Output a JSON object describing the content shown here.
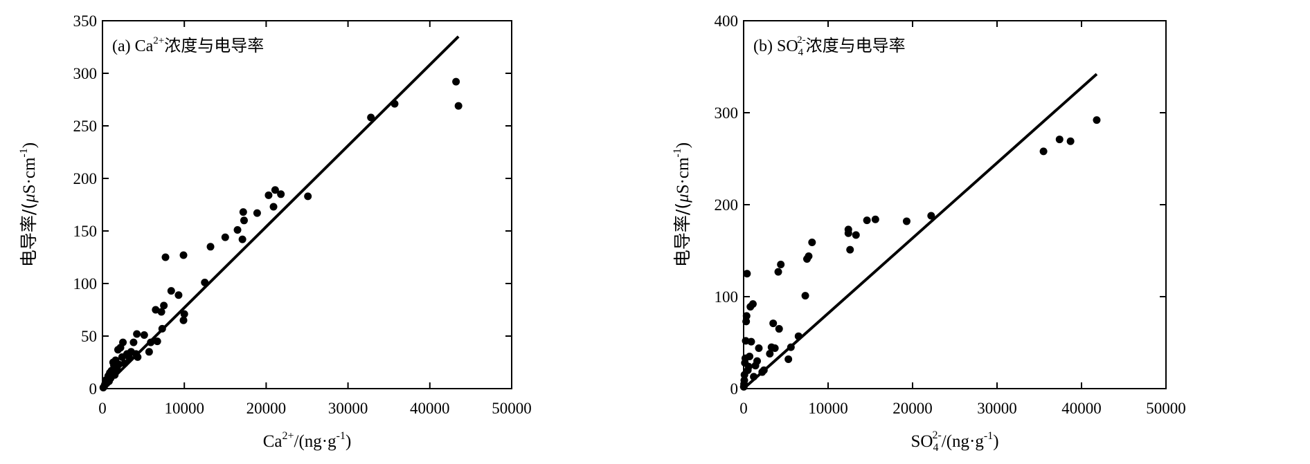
{
  "chart_data": [
    {
      "type": "scatter",
      "panel_title": {
        "prefix": "(a) Ca",
        "sup": "2+",
        "suffix": "浓度与电导率"
      },
      "xlabel": {
        "base": "Ca",
        "sup": "2+",
        "rest": "/(ng·g",
        "rest_sup": "-1",
        "tail": ")"
      },
      "ylabel": {
        "base": "电导率/(",
        "mu": "μ",
        "rest": "S·cm",
        "sup": "-1",
        "tail": ")"
      },
      "xlim": [
        0,
        50000
      ],
      "ylim": [
        0,
        350
      ],
      "x_ticks": [
        "0",
        "10000",
        "20000",
        "30000",
        "40000",
        "50000"
      ],
      "y_ticks": [
        "0",
        "50",
        "100",
        "150",
        "200",
        "250",
        "300",
        "350"
      ],
      "fit_line": {
        "x": [
          0,
          43500
        ],
        "y": [
          0,
          335
        ]
      },
      "points": [
        [
          43200,
          292
        ],
        [
          43500,
          269
        ],
        [
          35700,
          271
        ],
        [
          32800,
          258
        ],
        [
          25100,
          183
        ],
        [
          21800,
          185
        ],
        [
          21100,
          189
        ],
        [
          20900,
          173
        ],
        [
          20300,
          184
        ],
        [
          18900,
          167
        ],
        [
          17300,
          160
        ],
        [
          17200,
          168
        ],
        [
          17100,
          142
        ],
        [
          16500,
          151
        ],
        [
          15000,
          144
        ],
        [
          13200,
          135
        ],
        [
          12500,
          101
        ],
        [
          9900,
          127
        ],
        [
          10000,
          71
        ],
        [
          9900,
          65
        ],
        [
          9300,
          89
        ],
        [
          8400,
          93
        ],
        [
          7700,
          125
        ],
        [
          7500,
          79
        ],
        [
          7200,
          73
        ],
        [
          7300,
          57
        ],
        [
          6700,
          45
        ],
        [
          6500,
          75
        ],
        [
          5900,
          44
        ],
        [
          5700,
          35
        ],
        [
          5100,
          51
        ],
        [
          4300,
          30
        ],
        [
          4200,
          52
        ],
        [
          4100,
          33
        ],
        [
          3800,
          44
        ],
        [
          3500,
          35
        ],
        [
          3300,
          29
        ],
        [
          3000,
          33
        ],
        [
          2700,
          24
        ],
        [
          2500,
          44
        ],
        [
          2400,
          30
        ],
        [
          2200,
          39
        ],
        [
          2000,
          23
        ],
        [
          1900,
          37
        ],
        [
          1800,
          18
        ],
        [
          1600,
          27
        ],
        [
          1500,
          13
        ],
        [
          1400,
          22
        ],
        [
          1300,
          25
        ],
        [
          1100,
          17
        ],
        [
          1000,
          10
        ],
        [
          900,
          15
        ],
        [
          800,
          7
        ],
        [
          700,
          12
        ],
        [
          600,
          9
        ],
        [
          500,
          5
        ],
        [
          400,
          8
        ],
        [
          300,
          4
        ],
        [
          200,
          2
        ],
        [
          100,
          1
        ]
      ]
    },
    {
      "type": "scatter",
      "panel_title": {
        "prefix": "(b) SO",
        "sub": "4",
        "sup": "2-",
        "suffix": "浓度与电导率"
      },
      "xlabel": {
        "base": "SO",
        "sub": "4",
        "sup": "2-",
        "rest": "/(ng·g",
        "rest_sup": "-1",
        "tail": ")"
      },
      "ylabel": {
        "base": "电导率/(",
        "mu": "μ",
        "rest": "S·cm",
        "sup": "-1",
        "tail": ")"
      },
      "xlim": [
        0,
        50000
      ],
      "ylim": [
        0,
        400
      ],
      "x_ticks": [
        "0",
        "10000",
        "20000",
        "30000",
        "40000",
        "50000"
      ],
      "y_ticks": [
        "0",
        "100",
        "200",
        "300",
        "400"
      ],
      "fit_line": {
        "x": [
          0,
          41800
        ],
        "y": [
          0,
          342
        ]
      },
      "points": [
        [
          41800,
          292
        ],
        [
          38700,
          269
        ],
        [
          37400,
          271
        ],
        [
          35500,
          258
        ],
        [
          22200,
          188
        ],
        [
          19300,
          182
        ],
        [
          15600,
          184
        ],
        [
          14600,
          183
        ],
        [
          13300,
          167
        ],
        [
          12600,
          151
        ],
        [
          12400,
          173
        ],
        [
          12400,
          169
        ],
        [
          8100,
          159
        ],
        [
          7700,
          144
        ],
        [
          7500,
          141
        ],
        [
          7300,
          101
        ],
        [
          6500,
          57
        ],
        [
          5600,
          45
        ],
        [
          5300,
          32
        ],
        [
          4400,
          135
        ],
        [
          4100,
          127
        ],
        [
          4200,
          65
        ],
        [
          3700,
          44
        ],
        [
          3500,
          71
        ],
        [
          3300,
          45
        ],
        [
          3100,
          38
        ],
        [
          2400,
          20
        ],
        [
          2200,
          18
        ],
        [
          1800,
          44
        ],
        [
          1600,
          30
        ],
        [
          1400,
          25
        ],
        [
          1200,
          13
        ],
        [
          1100,
          92
        ],
        [
          900,
          51
        ],
        [
          800,
          89
        ],
        [
          700,
          35
        ],
        [
          600,
          24
        ],
        [
          500,
          20
        ],
        [
          400,
          125
        ],
        [
          350,
          79
        ],
        [
          300,
          73
        ],
        [
          250,
          52
        ],
        [
          200,
          33
        ],
        [
          150,
          28
        ],
        [
          100,
          15
        ],
        [
          80,
          9
        ],
        [
          50,
          5
        ],
        [
          20,
          2
        ]
      ]
    }
  ]
}
